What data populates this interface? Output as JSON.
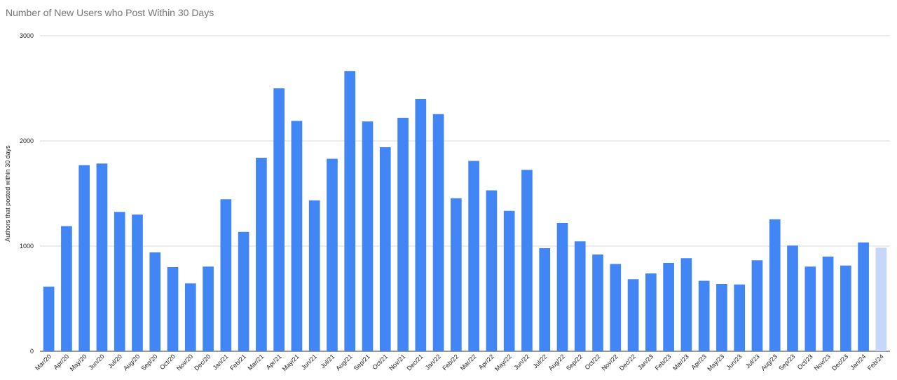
{
  "chart_data": {
    "type": "bar",
    "title": "Number of New Users who Post Within 30 Days",
    "xlabel": "",
    "ylabel": "Authors that posted within 30 days",
    "ylim": [
      0,
      3000
    ],
    "yticks": [
      "0",
      "1000",
      "2000",
      "3000"
    ],
    "grid": true,
    "legend": "none",
    "colors": {
      "bar": "#4285f4",
      "bar_partial": "#c6d8f9",
      "grid": "#d9d9d9"
    },
    "categories": [
      "Mar/20",
      "Apr/20",
      "May/20",
      "Jun/20",
      "Jul/20",
      "Aug/20",
      "Sep/20",
      "Oct/20",
      "Nov/20",
      "Dec/20",
      "Jan/21",
      "Feb/21",
      "Mar/21",
      "Apr/21",
      "May/21",
      "Jun/21",
      "Jul/21",
      "Aug/21",
      "Sep/21",
      "Oct/21",
      "Nov/21",
      "Dec/21",
      "Jan/22",
      "Feb/22",
      "Mar/22",
      "Apr/22",
      "May/22",
      "Jun/22",
      "Jul/22",
      "Aug/22",
      "Sep/22",
      "Oct/22",
      "Nov/22",
      "Dec/22",
      "Jan/23",
      "Feb/23",
      "Mar/23",
      "Apr/23",
      "May/23",
      "Jun/23",
      "Jul/23",
      "Aug/23",
      "Sep/23",
      "Oct/23",
      "Nov/23",
      "Dec/23",
      "Jan/24",
      "Feb/24"
    ],
    "values": [
      615,
      1190,
      1770,
      1785,
      1325,
      1300,
      940,
      800,
      645,
      805,
      1445,
      1135,
      1840,
      2500,
      2190,
      1435,
      1830,
      2665,
      2185,
      1940,
      2220,
      2400,
      2255,
      1455,
      1810,
      1530,
      1335,
      1725,
      980,
      1220,
      1045,
      920,
      830,
      685,
      740,
      840,
      885,
      670,
      640,
      635,
      865,
      1255,
      1005,
      805,
      900,
      815,
      1035,
      985
    ],
    "partial_last": true
  }
}
